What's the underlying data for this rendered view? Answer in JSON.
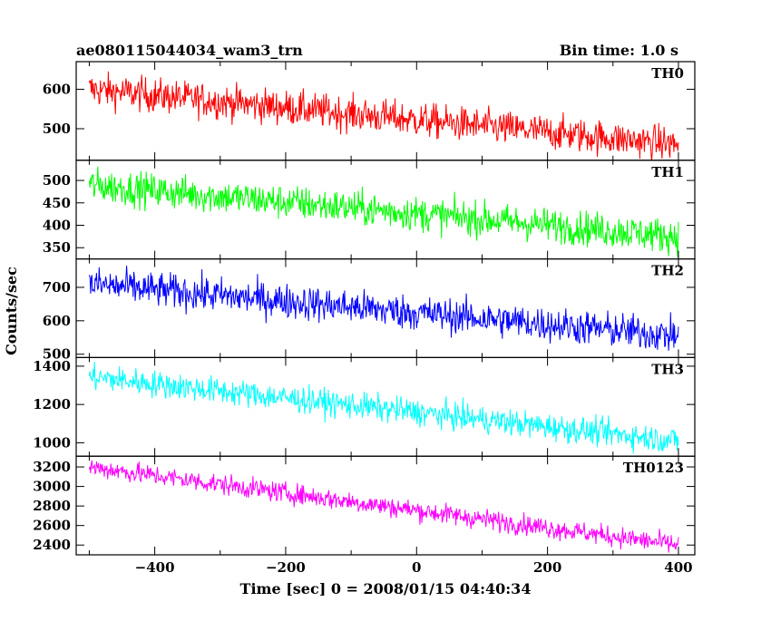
{
  "chart_data": {
    "type": "line",
    "title_left": "ae080115044034_wam3_trn",
    "title_right": "Bin time: 1.0 s",
    "xlabel": "Time [sec] 0 = 2008/01/15 04:40:34",
    "ylabel": "Counts/sec",
    "xlim": [
      -520,
      425
    ],
    "x_start": -500,
    "x_end": 400,
    "x_step": 1,
    "xticks": [
      -400,
      -200,
      0,
      200,
      400
    ],
    "xtick_labels": [
      "−400",
      "−200",
      "0",
      "200",
      "400"
    ],
    "grid": false,
    "series": [
      {
        "name": "TH0",
        "color": "#ff0000",
        "ylim": [
          420,
          670
        ],
        "yticks": [
          500,
          600
        ],
        "ytick_labels": [
          "500",
          "600"
        ],
        "trend": {
          "x": [
            -500,
            400
          ],
          "y": [
            600,
            460
          ]
        },
        "noise": 25
      },
      {
        "name": "TH1",
        "color": "#00ff00",
        "ylim": [
          325,
          545
        ],
        "yticks": [
          350,
          400,
          450,
          500
        ],
        "ytick_labels": [
          "350",
          "400",
          "450",
          "500"
        ],
        "trend": {
          "x": [
            -500,
            400
          ],
          "y": [
            490,
            375
          ]
        },
        "noise": 22
      },
      {
        "name": "TH2",
        "color": "#0000ff",
        "ylim": [
          490,
          785
        ],
        "yticks": [
          500,
          600,
          700
        ],
        "ytick_labels": [
          "500",
          "600",
          "700"
        ],
        "trend": {
          "x": [
            -500,
            400
          ],
          "y": [
            710,
            555
          ]
        },
        "noise": 30
      },
      {
        "name": "TH3",
        "color": "#00ffff",
        "ylim": [
          930,
          1445
        ],
        "yticks": [
          1000,
          1200,
          1400
        ],
        "ytick_labels": [
          "1000",
          "1200",
          "1400"
        ],
        "trend": {
          "x": [
            -500,
            400
          ],
          "y": [
            1345,
            1010
          ]
        },
        "noise": 40
      },
      {
        "name": "TH0123",
        "color": "#ff00ff",
        "ylim": [
          2300,
          3310
        ],
        "yticks": [
          2400,
          2600,
          2800,
          3000,
          3200
        ],
        "ytick_labels": [
          "2400",
          "2600",
          "2800",
          "3000",
          "3200"
        ],
        "trend": {
          "x": [
            -500,
            400
          ],
          "y": [
            3200,
            2400
          ]
        },
        "noise": 60
      }
    ]
  }
}
